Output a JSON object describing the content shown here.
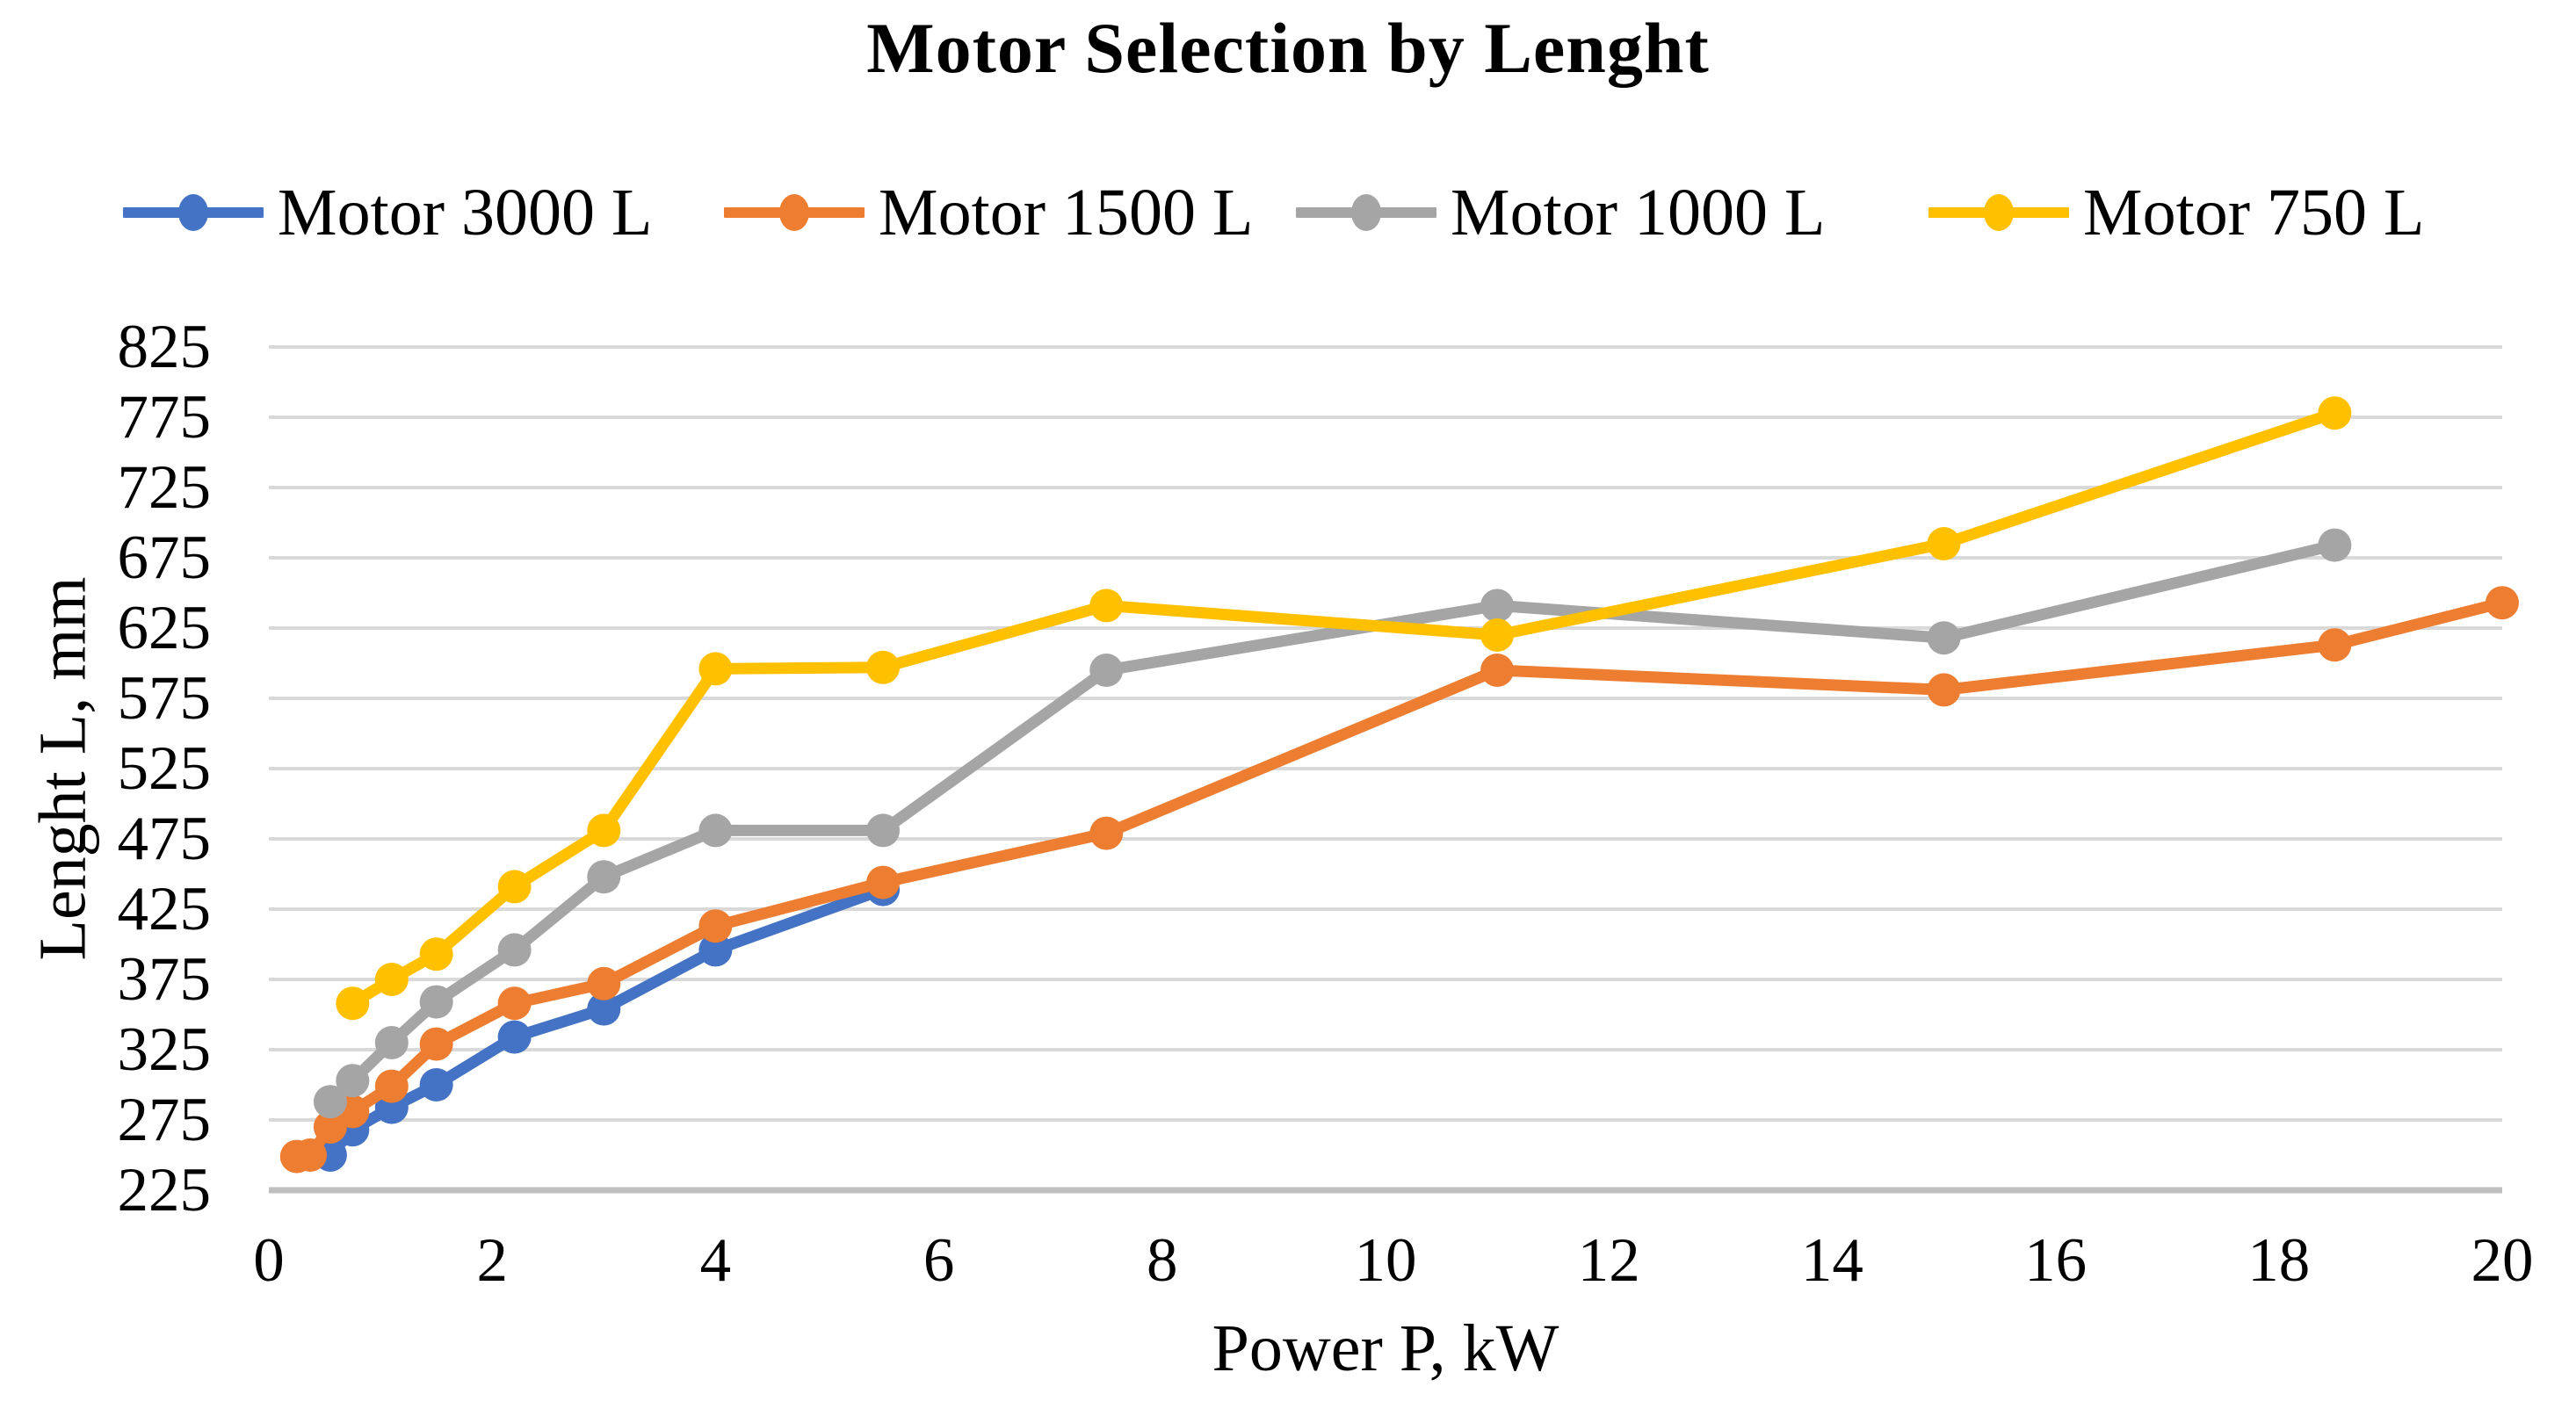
{
  "title": "Motor Selection by Lenght",
  "x_axis": {
    "title": "Power P, kW",
    "ticks": [
      0,
      2,
      4,
      6,
      8,
      10,
      12,
      14,
      16,
      18,
      20
    ],
    "min": 0,
    "max": 20
  },
  "y_axis": {
    "title": "Lenght L, mm",
    "ticks": [
      225,
      275,
      325,
      375,
      425,
      475,
      525,
      575,
      625,
      675,
      725,
      775,
      825
    ],
    "min": 225,
    "max": 825
  },
  "colors": {
    "series_blue": "#4472C4",
    "series_orange": "#ED7D31",
    "series_gray": "#A5A5A5",
    "series_yellow": "#FFC000",
    "gridline": "#D9D9D9",
    "axis_line": "#BFBFBF",
    "text": "#000000"
  },
  "legend": [
    "Motor 3000 L",
    "Motor 1500 L",
    "Motor 1000 L",
    "Motor 750 L"
  ],
  "chart_data": {
    "type": "line",
    "title": "Motor Selection by Lenght",
    "xlabel": "Power P, kW",
    "ylabel": "Lenght L, mm",
    "xlim": [
      0,
      20
    ],
    "ylim": [
      225,
      825
    ],
    "grid": "horizontal",
    "legend_position": "top",
    "series": [
      {
        "name": "Motor 3000 L",
        "color": "#4472C4",
        "points": [
          [
            0.55,
            250
          ],
          [
            0.75,
            268
          ],
          [
            1.1,
            284
          ],
          [
            1.5,
            300
          ],
          [
            2.2,
            334
          ],
          [
            3,
            354
          ],
          [
            4,
            396
          ],
          [
            5.5,
            439
          ]
        ]
      },
      {
        "name": "Motor 1500 L",
        "color": "#ED7D31",
        "points": [
          [
            0.25,
            249
          ],
          [
            0.37,
            250
          ],
          [
            0.55,
            270
          ],
          [
            0.75,
            281
          ],
          [
            1.1,
            299
          ],
          [
            1.5,
            329
          ],
          [
            2.2,
            358
          ],
          [
            3,
            372
          ],
          [
            4,
            413
          ],
          [
            5.5,
            444
          ],
          [
            7.5,
            479
          ],
          [
            11,
            595
          ],
          [
            15,
            581
          ],
          [
            18.5,
            613
          ],
          [
            20,
            643
          ]
        ]
      },
      {
        "name": "Motor 1000 L",
        "color": "#A5A5A5",
        "points": [
          [
            0.55,
            288
          ],
          [
            0.75,
            303
          ],
          [
            1.1,
            330
          ],
          [
            1.5,
            359
          ],
          [
            2.2,
            396
          ],
          [
            3,
            448
          ],
          [
            4,
            481
          ],
          [
            5.5,
            481
          ],
          [
            7.5,
            595
          ],
          [
            11,
            641
          ],
          [
            15,
            618
          ],
          [
            18.5,
            684
          ]
        ]
      },
      {
        "name": "Motor 750 L",
        "color": "#FFC000",
        "points": [
          [
            0.75,
            358
          ],
          [
            1.1,
            375
          ],
          [
            1.5,
            393
          ],
          [
            2.2,
            441
          ],
          [
            3,
            481
          ],
          [
            4,
            596
          ],
          [
            5.5,
            597
          ],
          [
            7.5,
            641
          ],
          [
            11,
            620
          ],
          [
            15,
            685
          ],
          [
            18.5,
            778
          ]
        ]
      }
    ]
  }
}
